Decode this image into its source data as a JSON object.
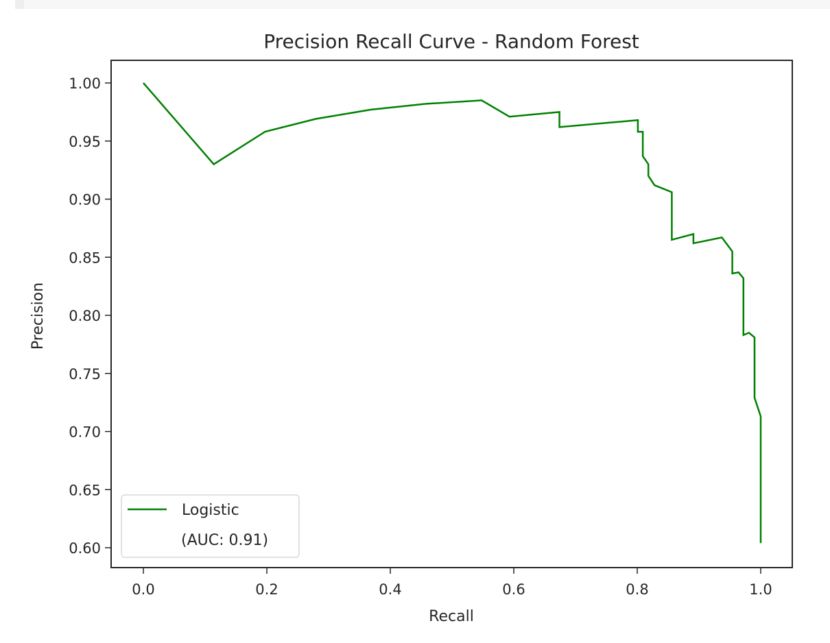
{
  "chart_data": {
    "type": "line",
    "title": "Precision Recall Curve - Random Forest",
    "xlabel": "Recall",
    "ylabel": "Precision",
    "xlim": [
      -0.05,
      1.05
    ],
    "ylim": [
      0.585,
      1.02
    ],
    "xticks": [
      0.0,
      0.2,
      0.4,
      0.6,
      0.8,
      1.0
    ],
    "xtick_labels": [
      "0.0",
      "0.2",
      "0.4",
      "0.6",
      "0.8",
      "1.0"
    ],
    "yticks": [
      0.6,
      0.65,
      0.7,
      0.75,
      0.8,
      0.85,
      0.9,
      0.95,
      1.0
    ],
    "ytick_labels": [
      "0.60",
      "0.65",
      "0.70",
      "0.75",
      "0.80",
      "0.85",
      "0.90",
      "0.95",
      "1.00"
    ],
    "grid": false,
    "legend_position": "lower left",
    "series": [
      {
        "name": "Logistic",
        "legend_label_line1": "Logistic",
        "legend_label_line2": "(AUC: 0.91)",
        "auc": 0.91,
        "color": "#008000",
        "x": [
          0.0,
          0.114,
          0.197,
          0.279,
          0.368,
          0.457,
          0.548,
          0.593,
          0.674,
          0.674,
          0.801,
          0.801,
          0.809,
          0.809,
          0.818,
          0.818,
          0.828,
          0.856,
          0.856,
          0.891,
          0.891,
          0.937,
          0.954,
          0.954,
          0.964,
          0.972,
          0.972,
          0.981,
          0.99,
          0.99,
          1.0,
          1.0
        ],
        "y": [
          1.0,
          0.93,
          0.958,
          0.969,
          0.977,
          0.982,
          0.985,
          0.971,
          0.975,
          0.962,
          0.968,
          0.958,
          0.958,
          0.937,
          0.93,
          0.92,
          0.912,
          0.906,
          0.865,
          0.87,
          0.862,
          0.867,
          0.855,
          0.836,
          0.837,
          0.832,
          0.783,
          0.785,
          0.781,
          0.729,
          0.713,
          0.604
        ]
      }
    ]
  },
  "colors": {
    "line": "#008000",
    "axis": "#262626",
    "legend_border": "#d9d9d9"
  }
}
